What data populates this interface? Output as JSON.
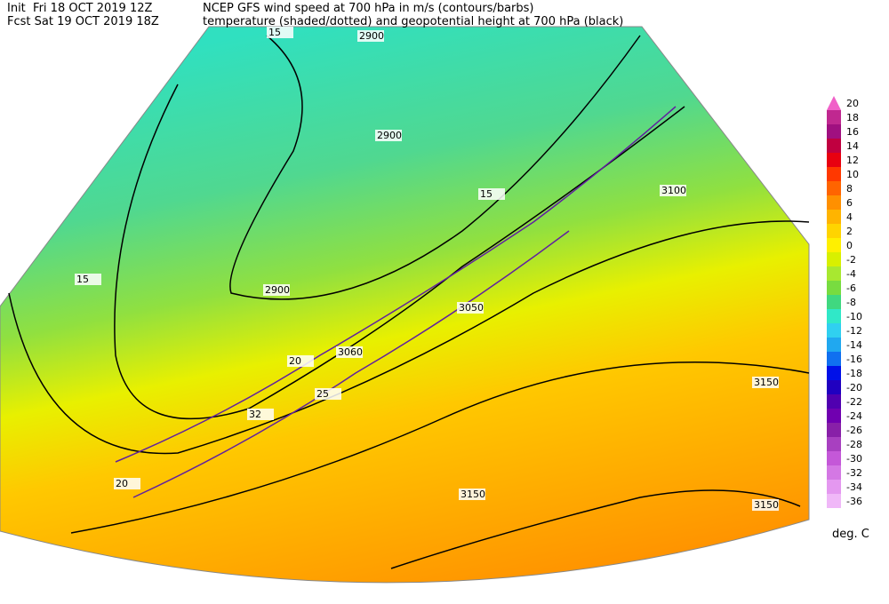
{
  "header": {
    "init": "Init  Fri 18 OCT 2019 12Z",
    "fcst": "Fcst Sat 19 OCT 2019 18Z",
    "title_line1": "NCEP GFS wind speed at 700 hPa in m/s (contours/barbs)",
    "title_line2": "temperature (shaded/dotted) and geopotential height at 700 hPa (black)"
  },
  "legend": {
    "unit": "deg. C",
    "entries": [
      {
        "value": 20,
        "color": "#f060c8"
      },
      {
        "value": 18,
        "color": "#c02890"
      },
      {
        "value": 16,
        "color": "#a01080"
      },
      {
        "value": 14,
        "color": "#c00040"
      },
      {
        "value": 12,
        "color": "#e80010"
      },
      {
        "value": 10,
        "color": "#ff3800"
      },
      {
        "value": 8,
        "color": "#ff6400"
      },
      {
        "value": 6,
        "color": "#ff9000"
      },
      {
        "value": 4,
        "color": "#ffb400"
      },
      {
        "value": 2,
        "color": "#ffd400"
      },
      {
        "value": 0,
        "color": "#fff000"
      },
      {
        "value": -2,
        "color": "#d8f000"
      },
      {
        "value": -4,
        "color": "#a8e830"
      },
      {
        "value": -6,
        "color": "#78dc40"
      },
      {
        "value": -8,
        "color": "#40d880"
      },
      {
        "value": -10,
        "color": "#30e8c8"
      },
      {
        "value": -12,
        "color": "#30d0f0"
      },
      {
        "value": -14,
        "color": "#20a8f0"
      },
      {
        "value": -16,
        "color": "#1070f0"
      },
      {
        "value": -18,
        "color": "#0010e8"
      },
      {
        "value": -20,
        "color": "#2000c0"
      },
      {
        "value": -22,
        "color": "#5000b0"
      },
      {
        "value": -24,
        "color": "#7000b0"
      },
      {
        "value": -26,
        "color": "#8820a8"
      },
      {
        "value": -28,
        "color": "#a840c0"
      },
      {
        "value": -30,
        "color": "#c458d8"
      },
      {
        "value": -32,
        "color": "#d478e4"
      },
      {
        "value": -34,
        "color": "#e498f0"
      },
      {
        "value": -36,
        "color": "#f0b8f8"
      }
    ]
  },
  "map": {
    "contour_labels": [
      "2900",
      "2900",
      "2900",
      "3100",
      "3050",
      "3060",
      "3150",
      "3150",
      "3150",
      "15",
      "15",
      "15",
      "20",
      "20",
      "25",
      "32"
    ]
  }
}
